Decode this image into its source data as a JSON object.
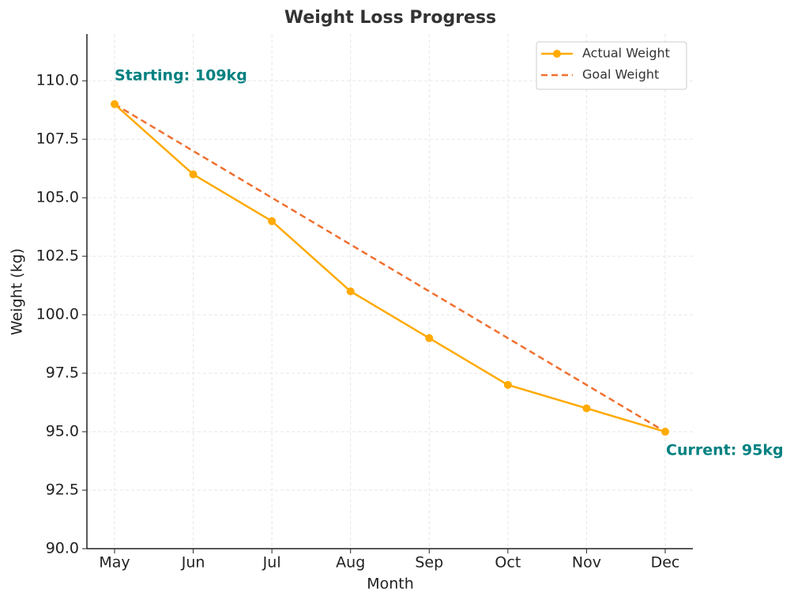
{
  "chart_data": {
    "type": "line",
    "title": "Weight Loss Progress",
    "x_label": "Month",
    "y_label": "Weight (kg)",
    "categories": [
      "May",
      "Jun",
      "Jul",
      "Aug",
      "Sep",
      "Oct",
      "Nov",
      "Dec"
    ],
    "series": [
      {
        "name": "Actual Weight",
        "color": "#ffaa00",
        "style": "solid",
        "marker": true,
        "values": [
          109,
          106,
          104,
          101,
          99,
          97,
          96,
          95
        ]
      },
      {
        "name": "Goal Weight",
        "color": "#f07030",
        "style": "dashed",
        "marker": false,
        "values": [
          109,
          107,
          105,
          103,
          101,
          99,
          97,
          95
        ]
      }
    ],
    "ylim": [
      90,
      112
    ],
    "yticks": [
      {
        "value": 90,
        "label": "90.0"
      },
      92.5,
      {
        "value": 95,
        "label": "95.0"
      },
      97.5,
      {
        "value": 100,
        "label": "100.0"
      },
      102.5,
      {
        "value": 105,
        "label": "105.0"
      },
      107.5,
      {
        "value": 110,
        "label": "110.0"
      }
    ],
    "grid": true,
    "legend": "upper right",
    "annotations": [
      {
        "text": "Starting: 109kg",
        "color": "#008080"
      },
      {
        "text": "Current: 95kg",
        "color": "#008080"
      }
    ]
  }
}
